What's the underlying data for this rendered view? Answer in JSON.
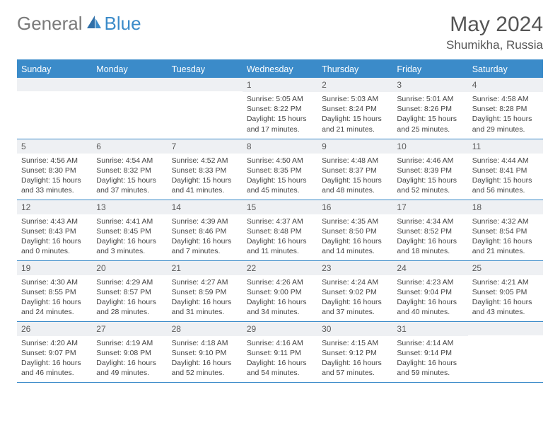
{
  "brand": {
    "text1": "General",
    "text2": "Blue"
  },
  "title": "May 2024",
  "location": "Shumikha, Russia",
  "colors": {
    "accent": "#3b8bc9",
    "header_bg": "#3b8bc9",
    "header_text": "#ffffff",
    "daynum_bg": "#eef0f3",
    "border": "#3b8bc9",
    "body_text": "#444444",
    "logo_gray": "#7a7a7a"
  },
  "typography": {
    "title_fontsize": 30,
    "location_fontsize": 17,
    "header_fontsize": 12.5,
    "daynum_fontsize": 12,
    "body_fontsize": 10.5
  },
  "weekdays": [
    "Sunday",
    "Monday",
    "Tuesday",
    "Wednesday",
    "Thursday",
    "Friday",
    "Saturday"
  ],
  "weeks": [
    [
      {
        "n": "",
        "sunrise": "",
        "sunset": "",
        "daylight": ""
      },
      {
        "n": "",
        "sunrise": "",
        "sunset": "",
        "daylight": ""
      },
      {
        "n": "",
        "sunrise": "",
        "sunset": "",
        "daylight": ""
      },
      {
        "n": "1",
        "sunrise": "Sunrise: 5:05 AM",
        "sunset": "Sunset: 8:22 PM",
        "daylight": "Daylight: 15 hours and 17 minutes."
      },
      {
        "n": "2",
        "sunrise": "Sunrise: 5:03 AM",
        "sunset": "Sunset: 8:24 PM",
        "daylight": "Daylight: 15 hours and 21 minutes."
      },
      {
        "n": "3",
        "sunrise": "Sunrise: 5:01 AM",
        "sunset": "Sunset: 8:26 PM",
        "daylight": "Daylight: 15 hours and 25 minutes."
      },
      {
        "n": "4",
        "sunrise": "Sunrise: 4:58 AM",
        "sunset": "Sunset: 8:28 PM",
        "daylight": "Daylight: 15 hours and 29 minutes."
      }
    ],
    [
      {
        "n": "5",
        "sunrise": "Sunrise: 4:56 AM",
        "sunset": "Sunset: 8:30 PM",
        "daylight": "Daylight: 15 hours and 33 minutes."
      },
      {
        "n": "6",
        "sunrise": "Sunrise: 4:54 AM",
        "sunset": "Sunset: 8:32 PM",
        "daylight": "Daylight: 15 hours and 37 minutes."
      },
      {
        "n": "7",
        "sunrise": "Sunrise: 4:52 AM",
        "sunset": "Sunset: 8:33 PM",
        "daylight": "Daylight: 15 hours and 41 minutes."
      },
      {
        "n": "8",
        "sunrise": "Sunrise: 4:50 AM",
        "sunset": "Sunset: 8:35 PM",
        "daylight": "Daylight: 15 hours and 45 minutes."
      },
      {
        "n": "9",
        "sunrise": "Sunrise: 4:48 AM",
        "sunset": "Sunset: 8:37 PM",
        "daylight": "Daylight: 15 hours and 48 minutes."
      },
      {
        "n": "10",
        "sunrise": "Sunrise: 4:46 AM",
        "sunset": "Sunset: 8:39 PM",
        "daylight": "Daylight: 15 hours and 52 minutes."
      },
      {
        "n": "11",
        "sunrise": "Sunrise: 4:44 AM",
        "sunset": "Sunset: 8:41 PM",
        "daylight": "Daylight: 15 hours and 56 minutes."
      }
    ],
    [
      {
        "n": "12",
        "sunrise": "Sunrise: 4:43 AM",
        "sunset": "Sunset: 8:43 PM",
        "daylight": "Daylight: 16 hours and 0 minutes."
      },
      {
        "n": "13",
        "sunrise": "Sunrise: 4:41 AM",
        "sunset": "Sunset: 8:45 PM",
        "daylight": "Daylight: 16 hours and 3 minutes."
      },
      {
        "n": "14",
        "sunrise": "Sunrise: 4:39 AM",
        "sunset": "Sunset: 8:46 PM",
        "daylight": "Daylight: 16 hours and 7 minutes."
      },
      {
        "n": "15",
        "sunrise": "Sunrise: 4:37 AM",
        "sunset": "Sunset: 8:48 PM",
        "daylight": "Daylight: 16 hours and 11 minutes."
      },
      {
        "n": "16",
        "sunrise": "Sunrise: 4:35 AM",
        "sunset": "Sunset: 8:50 PM",
        "daylight": "Daylight: 16 hours and 14 minutes."
      },
      {
        "n": "17",
        "sunrise": "Sunrise: 4:34 AM",
        "sunset": "Sunset: 8:52 PM",
        "daylight": "Daylight: 16 hours and 18 minutes."
      },
      {
        "n": "18",
        "sunrise": "Sunrise: 4:32 AM",
        "sunset": "Sunset: 8:54 PM",
        "daylight": "Daylight: 16 hours and 21 minutes."
      }
    ],
    [
      {
        "n": "19",
        "sunrise": "Sunrise: 4:30 AM",
        "sunset": "Sunset: 8:55 PM",
        "daylight": "Daylight: 16 hours and 24 minutes."
      },
      {
        "n": "20",
        "sunrise": "Sunrise: 4:29 AM",
        "sunset": "Sunset: 8:57 PM",
        "daylight": "Daylight: 16 hours and 28 minutes."
      },
      {
        "n": "21",
        "sunrise": "Sunrise: 4:27 AM",
        "sunset": "Sunset: 8:59 PM",
        "daylight": "Daylight: 16 hours and 31 minutes."
      },
      {
        "n": "22",
        "sunrise": "Sunrise: 4:26 AM",
        "sunset": "Sunset: 9:00 PM",
        "daylight": "Daylight: 16 hours and 34 minutes."
      },
      {
        "n": "23",
        "sunrise": "Sunrise: 4:24 AM",
        "sunset": "Sunset: 9:02 PM",
        "daylight": "Daylight: 16 hours and 37 minutes."
      },
      {
        "n": "24",
        "sunrise": "Sunrise: 4:23 AM",
        "sunset": "Sunset: 9:04 PM",
        "daylight": "Daylight: 16 hours and 40 minutes."
      },
      {
        "n": "25",
        "sunrise": "Sunrise: 4:21 AM",
        "sunset": "Sunset: 9:05 PM",
        "daylight": "Daylight: 16 hours and 43 minutes."
      }
    ],
    [
      {
        "n": "26",
        "sunrise": "Sunrise: 4:20 AM",
        "sunset": "Sunset: 9:07 PM",
        "daylight": "Daylight: 16 hours and 46 minutes."
      },
      {
        "n": "27",
        "sunrise": "Sunrise: 4:19 AM",
        "sunset": "Sunset: 9:08 PM",
        "daylight": "Daylight: 16 hours and 49 minutes."
      },
      {
        "n": "28",
        "sunrise": "Sunrise: 4:18 AM",
        "sunset": "Sunset: 9:10 PM",
        "daylight": "Daylight: 16 hours and 52 minutes."
      },
      {
        "n": "29",
        "sunrise": "Sunrise: 4:16 AM",
        "sunset": "Sunset: 9:11 PM",
        "daylight": "Daylight: 16 hours and 54 minutes."
      },
      {
        "n": "30",
        "sunrise": "Sunrise: 4:15 AM",
        "sunset": "Sunset: 9:12 PM",
        "daylight": "Daylight: 16 hours and 57 minutes."
      },
      {
        "n": "31",
        "sunrise": "Sunrise: 4:14 AM",
        "sunset": "Sunset: 9:14 PM",
        "daylight": "Daylight: 16 hours and 59 minutes."
      },
      {
        "n": "",
        "sunrise": "",
        "sunset": "",
        "daylight": ""
      }
    ]
  ]
}
